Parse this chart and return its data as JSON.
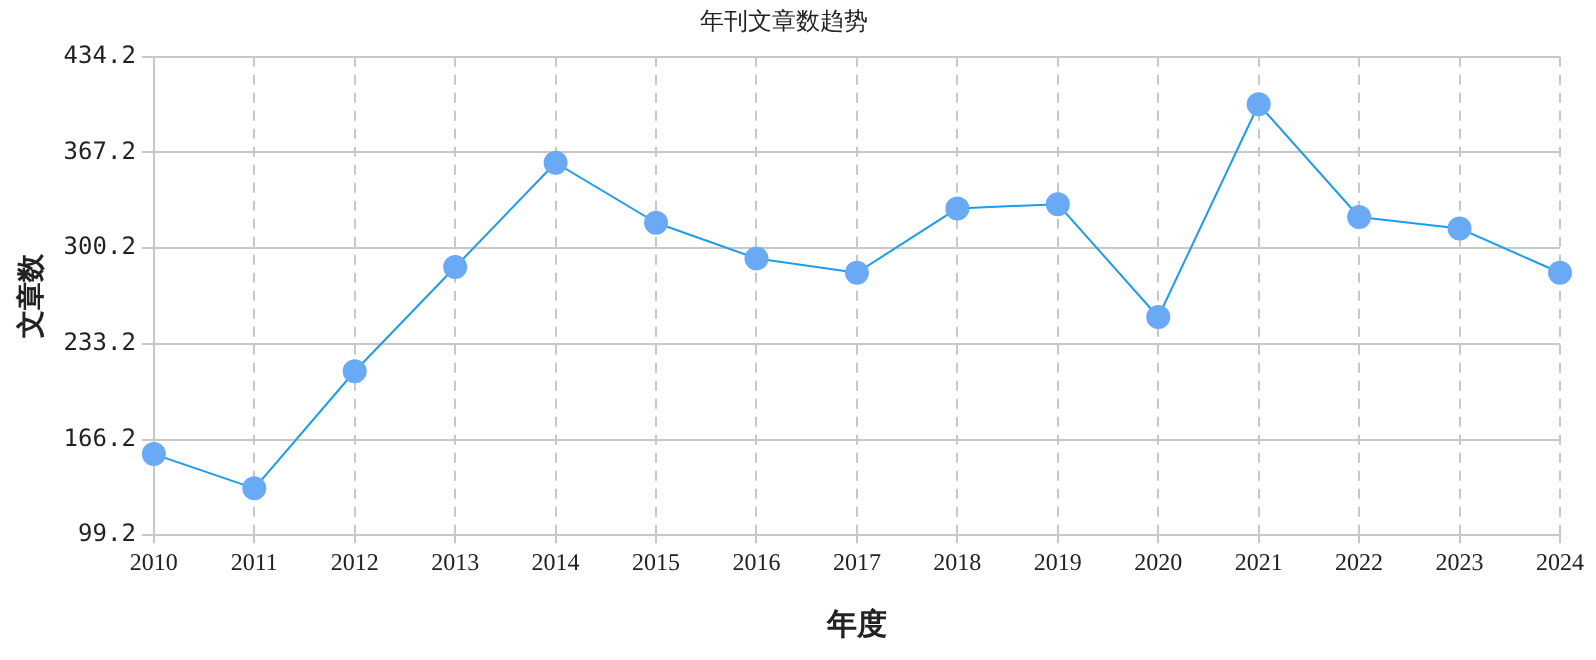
{
  "chart_data": {
    "type": "line",
    "title": "年刊文章数趋势",
    "xlabel": "年度",
    "ylabel": "文章数",
    "categories": [
      "2010",
      "2011",
      "2012",
      "2013",
      "2014",
      "2015",
      "2016",
      "2017",
      "2018",
      "2019",
      "2020",
      "2021",
      "2022",
      "2023",
      "2024"
    ],
    "series": [
      {
        "color": "#1a9cf0",
        "values": [
          156,
          132,
          214,
          287,
          360,
          318,
          293,
          283,
          328,
          331,
          252,
          401,
          322,
          314,
          283
        ]
      }
    ],
    "ylim": [
      99.2,
      434.2
    ],
    "yticks": [
      {
        "value": 99.2,
        "label": "99.2"
      },
      {
        "value": 166.2,
        "label": "166.2"
      },
      {
        "value": 233.2,
        "label": "233.2"
      },
      {
        "value": 300.2,
        "label": "300.2"
      },
      {
        "value": 367.2,
        "label": "367.2"
      },
      {
        "value": 434.2,
        "label": "434.2"
      }
    ],
    "grid": true,
    "legend": false,
    "marker": "circle",
    "line_style": "solid"
  }
}
